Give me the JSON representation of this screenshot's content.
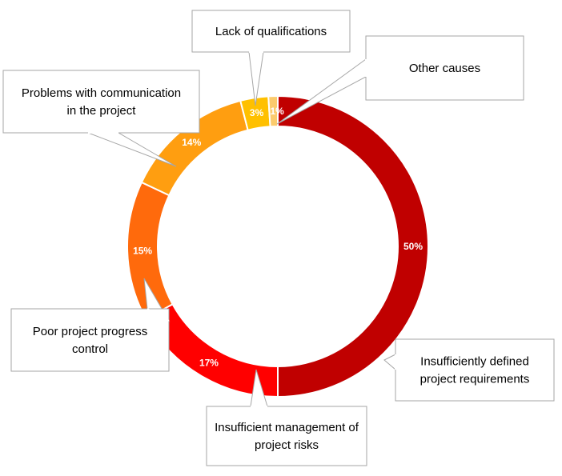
{
  "chart_data": {
    "type": "pie",
    "subtype": "donut",
    "title": "",
    "slices": [
      {
        "label": "Insufficiently defined project requirements",
        "label_lines": [
          "Insufficiently defined",
          "project requirements"
        ],
        "value": 50,
        "display": "50%",
        "color": "#C00000"
      },
      {
        "label": "Insufficient management of project risks",
        "label_lines": [
          "Insufficient management of",
          "project risks"
        ],
        "value": 17,
        "display": "17%",
        "color": "#FF0000"
      },
      {
        "label": "Poor project progress control",
        "label_lines": [
          "Poor project progress",
          "control"
        ],
        "value": 15,
        "display": "15%",
        "color": "#FF6A0C"
      },
      {
        "label": "Problems with communication in the project",
        "label_lines": [
          "Problems with communication",
          "in the project"
        ],
        "value": 14,
        "display": "14%",
        "color": "#FF9E10"
      },
      {
        "label": "Lack of qualifications",
        "label_lines": [
          "Lack of qualifications"
        ],
        "value": 3,
        "display": "3%",
        "color": "#FFC000"
      },
      {
        "label": "Other causes",
        "label_lines": [
          "Other causes"
        ],
        "value": 1,
        "display": "1%",
        "color": "#FBCB6D"
      }
    ]
  }
}
